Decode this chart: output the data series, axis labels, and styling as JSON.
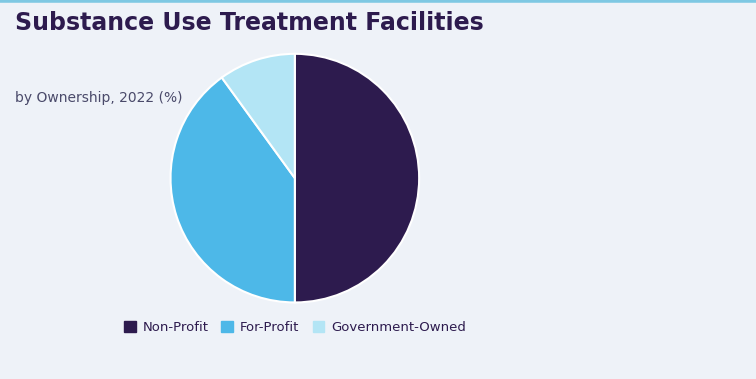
{
  "title": "Substance Use Treatment Facilities",
  "subtitle": "by Ownership, 2022 (%)",
  "labels": [
    "Non-Profit",
    "For-Profit",
    "Government-Owned"
  ],
  "values": [
    50.0,
    40.0,
    10.0
  ],
  "colors": [
    "#2d1b4e",
    "#4db8e8",
    "#b3e5f5"
  ],
  "background_color": "#eef2f8",
  "title_color": "#2d1b4e",
  "subtitle_color": "#4a4a6a",
  "legend_fontsize": 9.5,
  "title_fontsize": 17,
  "subtitle_fontsize": 10,
  "startangle": 90,
  "figsize": [
    7.56,
    3.79
  ]
}
